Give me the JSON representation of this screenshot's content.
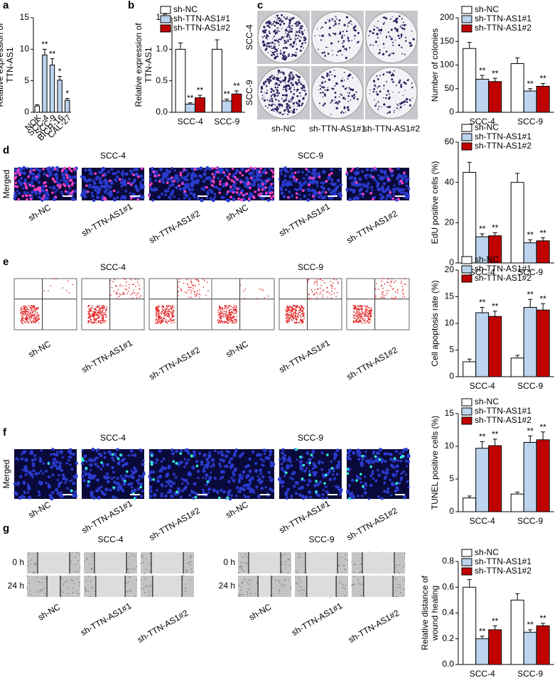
{
  "chart_data": [
    {
      "type": "bar",
      "panel": "a",
      "ylabel": [
        "Relative expression of",
        "TTN-AS1"
      ],
      "categories": [
        "NOK",
        "SCC-4",
        "SCC-9",
        "BICR-16",
        "CAL-27"
      ],
      "values": [
        1,
        9.1,
        7.5,
        5.1,
        1.9
      ],
      "errors": [
        0.2,
        0.9,
        1,
        0.6,
        0.3
      ],
      "labels": [
        null,
        "**",
        "**",
        "*",
        "*"
      ],
      "colors": [
        "#ffffff",
        "#bcd4ee",
        "#bcd4ee",
        "#bcd4ee",
        "#bcd4ee"
      ],
      "ylim": [
        0,
        15
      ],
      "yticks": [
        0,
        5,
        10,
        15
      ]
    },
    {
      "type": "grouped-bar",
      "panel": "b",
      "ylabel": [
        "Relative expression of",
        "TTN-AS1"
      ],
      "categories": [
        "SCC-4",
        "SCC-9"
      ],
      "series": [
        {
          "name": "sh-NC",
          "color": "#ffffff",
          "values": [
            1,
            1
          ],
          "errors": [
            0.1,
            0.15
          ]
        },
        {
          "name": "sh-TTN-AS1#1",
          "color": "#bcd4ee",
          "values": [
            0.13,
            0.18
          ],
          "errors": [
            0.02,
            0.03
          ],
          "labels": [
            "**",
            "**"
          ]
        },
        {
          "name": "sh-TTN-AS1#2",
          "color": "#c00000",
          "values": [
            0.23,
            0.29
          ],
          "errors": [
            0.04,
            0.05
          ],
          "labels": [
            "**",
            "**"
          ]
        }
      ],
      "ylim": [
        0,
        1.5
      ],
      "yticks": [
        {
          "value": 0,
          "label": "0.0"
        },
        0.5,
        {
          "value": 1,
          "label": "1.0"
        },
        1.5
      ]
    },
    {
      "type": "grouped-bar",
      "ylabel": [
        "Number of colonies"
      ],
      "categories": [
        "SCC-4",
        "SCC-9"
      ],
      "series": [
        {
          "name": "sh-NC",
          "color": "#ffffff",
          "values": [
            135,
            103
          ],
          "errors": [
            13,
            12
          ]
        },
        {
          "name": "sh-TTN-AS1#1",
          "color": "#bcd4ee",
          "values": [
            70,
            45
          ],
          "errors": [
            8,
            5
          ],
          "labels": [
            "**",
            "**"
          ]
        },
        {
          "name": "sh-TTN-AS1#2",
          "color": "#c00000",
          "values": [
            65,
            55
          ],
          "errors": [
            7,
            6
          ],
          "labels": [
            "**",
            "**"
          ]
        }
      ],
      "ylim": [
        0,
        200
      ],
      "yticks": [
        0,
        50,
        100,
        150,
        200
      ]
    },
    {
      "type": "grouped-bar",
      "ylabel": [
        "EdU positive cells (%)"
      ],
      "categories": [
        "SCC-4",
        "SCC-9"
      ],
      "series": [
        {
          "name": "sh-NC",
          "color": "#ffffff",
          "values": [
            45,
            40
          ],
          "errors": [
            5,
            4.5
          ]
        },
        {
          "name": "sh-TTN-AS1#1",
          "color": "#bcd4ee",
          "values": [
            13,
            10
          ],
          "errors": [
            1.5,
            1.5
          ],
          "labels": [
            "**",
            "**"
          ]
        },
        {
          "name": "sh-TTN-AS1#2",
          "color": "#c00000",
          "values": [
            13.5,
            11
          ],
          "errors": [
            1.5,
            1.5
          ],
          "labels": [
            "**",
            "**"
          ]
        }
      ],
      "ylim": [
        0,
        60
      ],
      "yticks": [
        0,
        20,
        40,
        60
      ]
    },
    {
      "type": "grouped-bar",
      "ylabel": [
        "Cell apoptosis rate (%)"
      ],
      "categories": [
        "SCC-4",
        "SCC-9"
      ],
      "series": [
        {
          "name": "sh-NC",
          "color": "#ffffff",
          "values": [
            2.8,
            3.5
          ],
          "errors": [
            0.5,
            0.5
          ]
        },
        {
          "name": "sh-TTN-AS1#1",
          "color": "#bcd4ee",
          "values": [
            12,
            13
          ],
          "errors": [
            1,
            1.5
          ],
          "labels": [
            "**",
            "**"
          ]
        },
        {
          "name": "sh-TTN-AS1#2",
          "color": "#c00000",
          "values": [
            11.3,
            12.5
          ],
          "errors": [
            1,
            1.2
          ],
          "labels": [
            "**",
            "**"
          ]
        }
      ],
      "ylim": [
        0,
        20
      ],
      "yticks": [
        0,
        5,
        10,
        15,
        20
      ]
    },
    {
      "type": "grouped-bar",
      "ylabel": [
        "TUNEL positive cells (%)"
      ],
      "categories": [
        "SCC-4",
        "SCC-9"
      ],
      "series": [
        {
          "name": "sh-NC",
          "color": "#ffffff",
          "values": [
            2.1,
            2.7
          ],
          "errors": [
            0.3,
            0.3
          ]
        },
        {
          "name": "sh-TTN-AS1#1",
          "color": "#bcd4ee",
          "values": [
            9.7,
            10.6
          ],
          "errors": [
            1,
            1
          ],
          "labels": [
            "**",
            "**"
          ]
        },
        {
          "name": "sh-TTN-AS1#2",
          "color": "#c00000",
          "values": [
            10.1,
            11
          ],
          "errors": [
            1,
            1.2
          ],
          "labels": [
            "**",
            "**"
          ]
        }
      ],
      "ylim": [
        0,
        15
      ],
      "yticks": [
        0,
        5,
        10,
        15
      ]
    },
    {
      "type": "grouped-bar",
      "ylabel": [
        "Relative distance of",
        "wound healing"
      ],
      "categories": [
        "SCC-4",
        "SCC-9"
      ],
      "series": [
        {
          "name": "sh-NC",
          "color": "#ffffff",
          "values": [
            0.6,
            0.5
          ],
          "errors": [
            0.06,
            0.05
          ]
        },
        {
          "name": "sh-TTN-AS1#1",
          "color": "#bcd4ee",
          "values": [
            0.2,
            0.25
          ],
          "errors": [
            0.02,
            0.02
          ],
          "labels": [
            "**",
            "**"
          ]
        },
        {
          "name": "sh-TTN-AS1#2",
          "color": "#c00000",
          "values": [
            0.27,
            0.3
          ],
          "errors": [
            0.03,
            0.02
          ],
          "labels": [
            "**",
            "**"
          ]
        }
      ],
      "ylim": [
        0,
        0.8
      ],
      "yticks": [
        {
          "value": 0,
          "label": "0.0"
        },
        0.2,
        0.4,
        0.6,
        0.8
      ]
    }
  ],
  "images": [
    {
      "panel": "c",
      "rows": [
        "SCC-4",
        "SCC-9"
      ],
      "columns": [
        "sh-NC",
        "sh-TTN-AS1#1",
        "sh-TTN-AS1#2"
      ]
    },
    {
      "panel": "d",
      "row_label": "Merged",
      "groups": [
        "SCC-4",
        "SCC-9"
      ],
      "columns": [
        "sh-NC",
        "sh-TTN-AS1#1",
        "sh-TTN-AS1#2",
        "sh-NC",
        "sh-TTN-AS1#1",
        "sh-TTN-AS1#2"
      ]
    },
    {
      "panel": "e",
      "groups": [
        "SCC-4",
        "SCC-9"
      ],
      "columns": [
        "sh-NC",
        "sh-TTN-AS1#1",
        "sh-TTN-AS1#2",
        "sh-NC",
        "sh-TTN-AS1#1",
        "sh-TTN-AS1#2"
      ]
    },
    {
      "panel": "f",
      "row_label": "Merged",
      "groups": [
        "SCC-4",
        "SCC-9"
      ],
      "columns": [
        "sh-NC",
        "sh-TTN-AS1#1",
        "sh-TTN-AS1#2",
        "sh-NC",
        "sh-TTN-AS1#1",
        "sh-TTN-AS1#2"
      ]
    },
    {
      "panel": "g",
      "groups": [
        "SCC-4",
        "SCC-9"
      ],
      "rows": [
        "0 h",
        "24 h"
      ],
      "columns": [
        "sh-NC",
        "sh-TTN-AS1#1",
        "sh-TTN-AS1#2",
        "sh-NC",
        "sh-TTN-AS1#1",
        "sh-TTN-AS1#2"
      ]
    }
  ]
}
